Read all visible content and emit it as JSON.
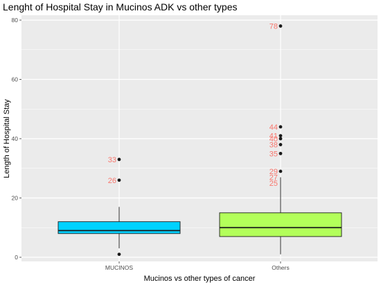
{
  "chart_data": {
    "type": "boxplot",
    "title": "Lenght of Hospital Stay in Mucinos ADK vs other types",
    "xlabel": "Mucinos vs other types of cancer",
    "ylabel": "Length of Hospital Stay",
    "ylim": [
      0,
      80
    ],
    "yticks": [
      "0",
      "20",
      "40",
      "60",
      "80"
    ],
    "grid": true,
    "categories": [
      "MUCINOS",
      "Others"
    ],
    "boxes": [
      {
        "category": "MUCINOS",
        "fill": "#00d2ff",
        "whisker_low": 3,
        "q1": 8,
        "median": 9,
        "q3": 12,
        "whisker_high": 17,
        "outliers": [
          {
            "value": 33,
            "label": "33"
          },
          {
            "value": 26,
            "label": "26"
          },
          {
            "value": 1,
            "label": ""
          }
        ]
      },
      {
        "category": "Others",
        "fill": "#b3ff5a",
        "whisker_low": 1,
        "q1": 7,
        "median": 10,
        "q3": 15,
        "whisker_high": 27,
        "outliers": [
          {
            "value": 78,
            "label": "78"
          },
          {
            "value": 44,
            "label": "44"
          },
          {
            "value": 41,
            "label": "41"
          },
          {
            "value": 40,
            "label": "40"
          },
          {
            "value": 38,
            "label": "38"
          },
          {
            "value": 35,
            "label": "35"
          },
          {
            "value": 29,
            "label": "29"
          }
        ],
        "extra_labels": [
          {
            "value": 27,
            "label": "27"
          },
          {
            "value": 25,
            "label": "25"
          }
        ]
      }
    ],
    "colors": {
      "panel": "#ebebeb",
      "grid": "#ffffff",
      "outlier_point": "#1a1a1a",
      "outlier_label": "#f8766d",
      "box_line": "#1a1a1a"
    }
  }
}
